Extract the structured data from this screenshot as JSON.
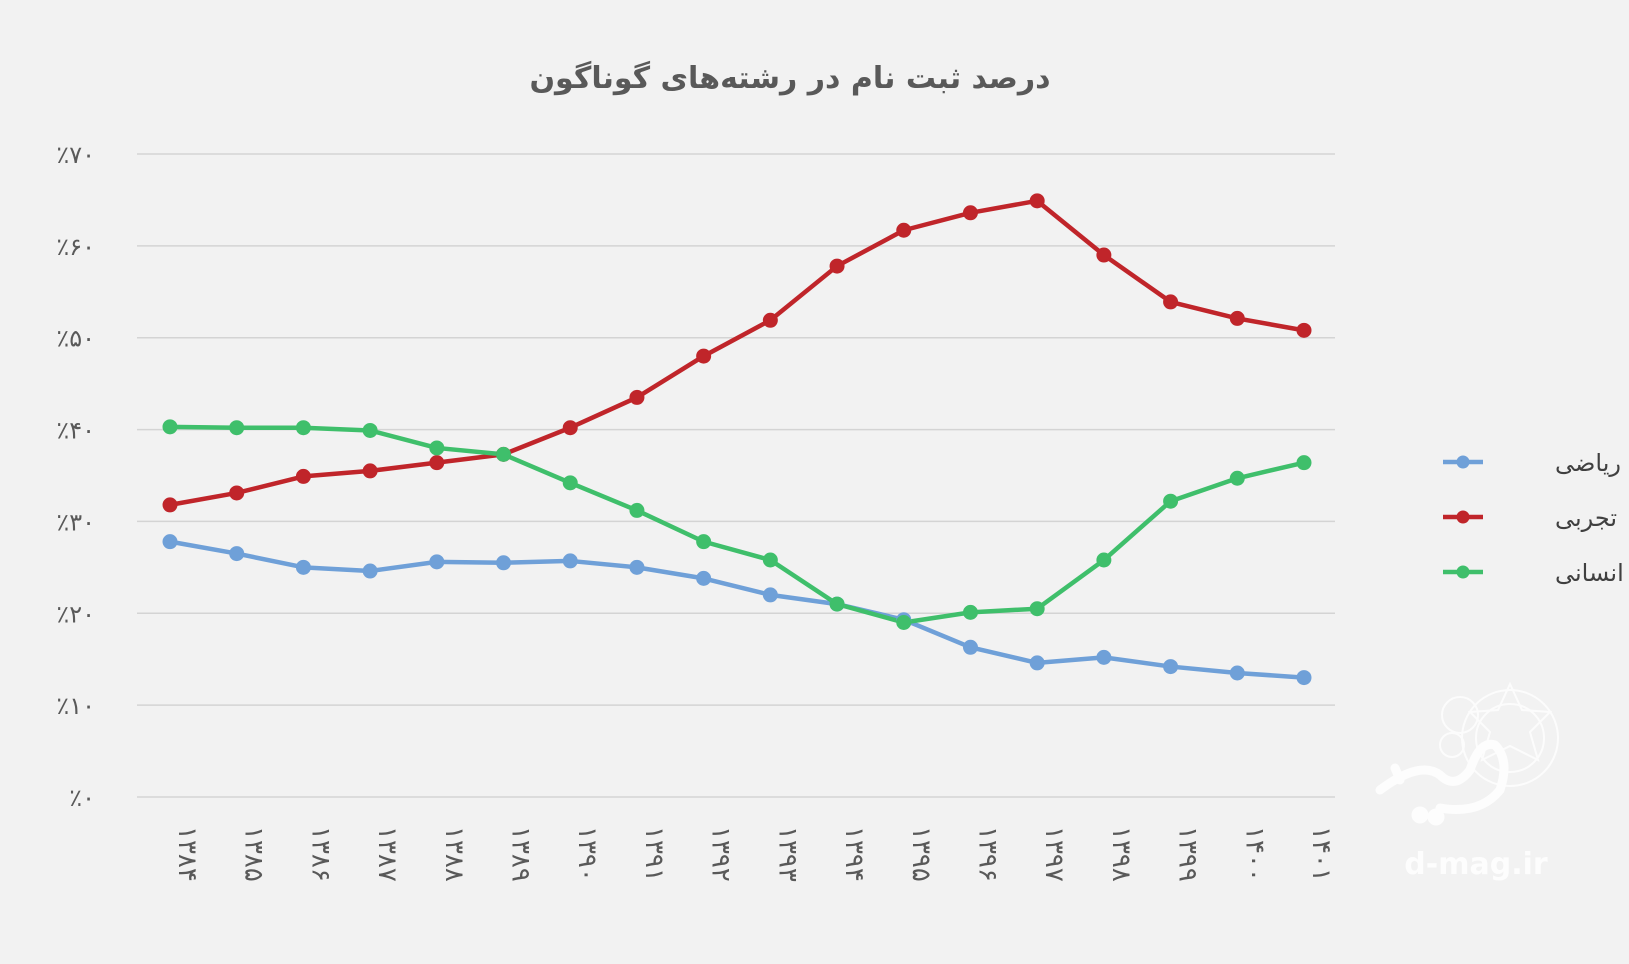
{
  "chart_data": {
    "type": "line",
    "title": "درصد ثبت نام در رشته‌های گوناگون",
    "xlabel": "",
    "ylabel": "",
    "categories": [
      "۱۳۸۴",
      "۱۳۸۵",
      "۱۳۸۶",
      "۱۳۸۷",
      "۱۳۸۸",
      "۱۳۸۹",
      "۱۳۹۰",
      "۱۳۹۱",
      "۱۳۹۲",
      "۱۳۹۳",
      "۱۳۹۴",
      "۱۳۹۵",
      "۱۳۹۶",
      "۱۳۹۷",
      "۱۳۹۸",
      "۱۳۹۹",
      "۱۴۰۰",
      "۱۴۰۱"
    ],
    "y_ticks": [
      {
        "value": 0,
        "label": "٪۰"
      },
      {
        "value": 10,
        "label": "٪۱۰"
      },
      {
        "value": 20,
        "label": "٪۲۰"
      },
      {
        "value": 30,
        "label": "٪۳۰"
      },
      {
        "value": 40,
        "label": "٪۴۰"
      },
      {
        "value": 50,
        "label": "٪۵۰"
      },
      {
        "value": 60,
        "label": "٪۶۰"
      },
      {
        "value": 70,
        "label": "٪۷۰"
      }
    ],
    "ylim": [
      0,
      70
    ],
    "grid": true,
    "legend_position": "right",
    "series": [
      {
        "name": "ریاضی",
        "color": "#6fa0d8",
        "values": [
          27.8,
          26.5,
          25.0,
          24.6,
          25.6,
          25.5,
          25.7,
          25.0,
          23.8,
          22.0,
          21.0,
          19.3,
          16.3,
          14.6,
          15.2,
          14.2,
          13.5,
          13.0
        ]
      },
      {
        "name": "تجربی",
        "color": "#c0252a",
        "values": [
          31.8,
          33.1,
          34.9,
          35.5,
          36.4,
          37.3,
          40.2,
          43.5,
          48.0,
          51.9,
          57.8,
          61.7,
          63.6,
          64.9,
          59.0,
          53.9,
          52.1,
          50.8
        ]
      },
      {
        "name": "انسانی",
        "color": "#3fbf6b",
        "values": [
          40.3,
          40.2,
          40.2,
          39.9,
          38.0,
          37.3,
          34.2,
          31.2,
          27.8,
          25.8,
          21.0,
          19.0,
          20.1,
          20.5,
          25.8,
          32.2,
          34.7,
          36.4
        ]
      }
    ]
  },
  "watermark": {
    "site": "d-mag.ir"
  }
}
